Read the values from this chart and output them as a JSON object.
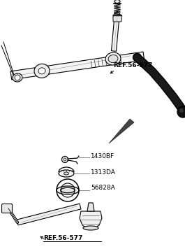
{
  "background_color": "#ffffff",
  "line_color": "#000000",
  "dark_color": "#1a1a1a",
  "gray_color": "#888888",
  "light_gray": "#e8e8e8",
  "label_1": "REF.56-577",
  "label_2": "1430BF",
  "label_3": "1313DA",
  "label_4": "56828A",
  "label_5": "REF.56-577",
  "font_size_ref": 6.5,
  "font_size_part": 6.5,
  "figsize": [
    2.65,
    3.56
  ],
  "dpi": 100
}
